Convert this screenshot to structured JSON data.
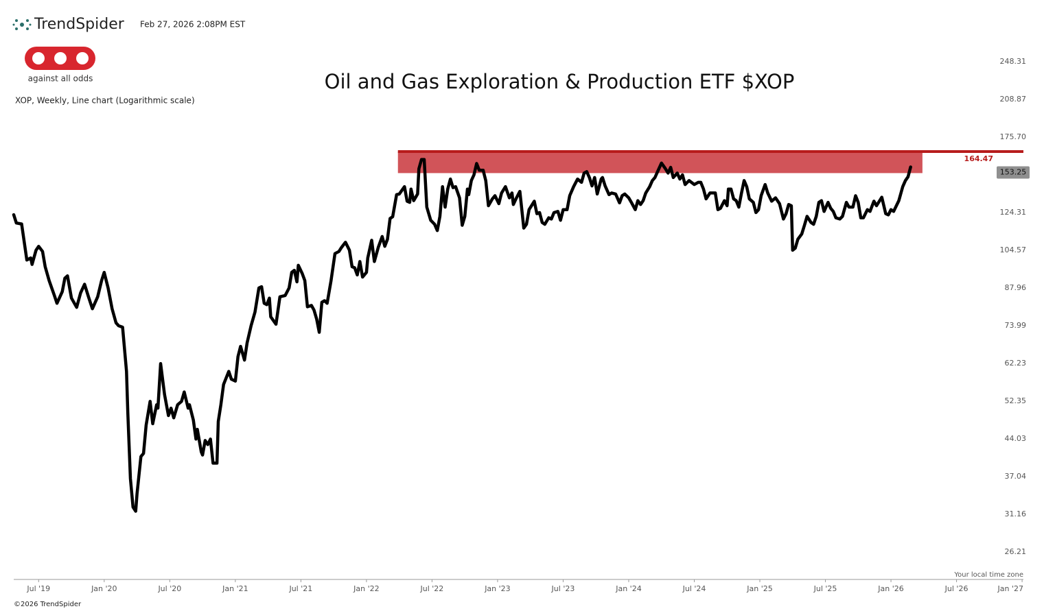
{
  "header": {
    "brand": "TrendSpider",
    "timestamp": "Feb 27, 2026 2:08PM EST",
    "logo_text": "against all odds",
    "timezone_note": "Your local time zone",
    "copyright": "©2026 TrendSpider"
  },
  "chart_data": {
    "type": "line",
    "title": "Oil and Gas Exploration & Production ETF $XOP",
    "subtitle": "XOP, Weekly, Line chart (Logarithmic scale)",
    "log_scale": true,
    "color": "#000000",
    "x": [
      2019.31,
      2019.33,
      2019.37,
      2019.41,
      2019.44,
      2019.45,
      2019.48,
      2019.5,
      2019.53,
      2019.55,
      2019.58,
      2019.62,
      2019.64,
      2019.68,
      2019.7,
      2019.72,
      2019.75,
      2019.79,
      2019.82,
      2019.85,
      2019.88,
      2019.91,
      2019.95,
      2019.98,
      2020.0,
      2020.03,
      2020.06,
      2020.09,
      2020.11,
      2020.14,
      2020.17,
      2020.18,
      2020.2,
      2020.22,
      2020.24,
      2020.25,
      2020.28,
      2020.3,
      2020.32,
      2020.35,
      2020.37,
      2020.4,
      2020.41,
      2020.43,
      2020.46,
      2020.49,
      2020.51,
      2020.53,
      2020.56,
      2020.59,
      2020.61,
      2020.64,
      2020.65,
      2020.68,
      2020.7,
      2020.71,
      2020.74,
      2020.75,
      2020.77,
      2020.79,
      2020.81,
      2020.83,
      2020.86,
      2020.87,
      2020.89,
      2020.91,
      2020.95,
      2020.97,
      2021.0,
      2021.02,
      2021.04,
      2021.07,
      2021.09,
      2021.12,
      2021.15,
      2021.18,
      2021.2,
      2021.22,
      2021.24,
      2021.26,
      2021.27,
      2021.31,
      2021.34,
      2021.38,
      2021.41,
      2021.43,
      2021.45,
      2021.47,
      2021.48,
      2021.51,
      2021.53,
      2021.55,
      2021.58,
      2021.6,
      2021.62,
      2021.64,
      2021.66,
      2021.68,
      2021.7,
      2021.73,
      2021.76,
      2021.79,
      2021.81,
      2021.84,
      2021.87,
      2021.89,
      2021.91,
      2021.93,
      2021.95,
      2021.97,
      2022.0,
      2022.01,
      2022.04,
      2022.06,
      2022.09,
      2022.12,
      2022.14,
      2022.16,
      2022.18,
      2022.2,
      2022.23,
      2022.25,
      2022.29,
      2022.31,
      2022.33,
      2022.34,
      2022.36,
      2022.39,
      2022.4,
      2022.42,
      2022.44,
      2022.46,
      2022.49,
      2022.52,
      2022.54,
      2022.56,
      2022.58,
      2022.6,
      2022.62,
      2022.64,
      2022.66,
      2022.68,
      2022.71,
      2022.73,
      2022.75,
      2022.77,
      2022.78,
      2022.8,
      2022.82,
      2022.84,
      2022.86,
      2022.89,
      2022.91,
      2022.93,
      2022.96,
      2022.98,
      2023.01,
      2023.03,
      2023.06,
      2023.09,
      2023.11,
      2023.12,
      2023.14,
      2023.17,
      2023.2,
      2023.22,
      2023.24,
      2023.28,
      2023.3,
      2023.32,
      2023.34,
      2023.36,
      2023.39,
      2023.41,
      2023.43,
      2023.46,
      2023.48,
      2023.5,
      2023.53,
      2023.55,
      2023.58,
      2023.61,
      2023.64,
      2023.66,
      2023.68,
      2023.7,
      2023.72,
      2023.74,
      2023.76,
      2023.79,
      2023.8,
      2023.82,
      2023.85,
      2023.87,
      2023.9,
      2023.93,
      2023.95,
      2023.97,
      2024.0,
      2024.02,
      2024.05,
      2024.07,
      2024.09,
      2024.11,
      2024.13,
      2024.16,
      2024.18,
      2024.2,
      2024.22,
      2024.25,
      2024.28,
      2024.3,
      2024.32,
      2024.34,
      2024.37,
      2024.39,
      2024.41,
      2024.43,
      2024.46,
      2024.5,
      2024.53,
      2024.55,
      2024.57,
      2024.59,
      2024.62,
      2024.66,
      2024.68,
      2024.7,
      2024.73,
      2024.75,
      2024.76,
      2024.78,
      2024.8,
      2024.82,
      2024.84,
      2024.86,
      2024.88,
      2024.9,
      2024.92,
      2024.95,
      2024.97,
      2024.99,
      2025.01,
      2025.04,
      2025.06,
      2025.09,
      2025.12,
      2025.15,
      2025.18,
      2025.2,
      2025.22,
      2025.24,
      2025.25,
      2025.27,
      2025.29,
      2025.32,
      2025.34,
      2025.36,
      2025.39,
      2025.41,
      2025.43,
      2025.45,
      2025.47,
      2025.49,
      2025.52,
      2025.54,
      2025.56,
      2025.58,
      2025.61,
      2025.63,
      2025.66,
      2025.68,
      2025.71,
      2025.73,
      2025.75,
      2025.77,
      2025.79,
      2025.82,
      2025.84,
      2025.87,
      2025.89,
      2025.93,
      2025.96,
      2025.98,
      2026.0,
      2026.02,
      2026.06,
      2026.09,
      2026.11,
      2026.13,
      2026.15
    ],
    "values": [
      123.1,
      118.5,
      118,
      100,
      101,
      98,
      104.6,
      106.5,
      104,
      97,
      91,
      85,
      82,
      86.5,
      92,
      93,
      84,
      80.5,
      86,
      89.5,
      84.5,
      80,
      84.5,
      91,
      94.5,
      88,
      80,
      75,
      74,
      73.5,
      60,
      49.7,
      36.7,
      32.2,
      31.6,
      34.2,
      40.6,
      41.2,
      46.9,
      52.3,
      47.2,
      51.5,
      50.7,
      62.2,
      54,
      49,
      50.7,
      48.5,
      51.5,
      52.3,
      54.6,
      50.7,
      51.5,
      48,
      44,
      46,
      41.5,
      40.9,
      43.7,
      42.9,
      44,
      39.4,
      39.4,
      47.7,
      51.5,
      56.5,
      60,
      57.9,
      57.4,
      64.2,
      67.3,
      63.2,
      68.4,
      74,
      78.8,
      88,
      88.5,
      82,
      81.5,
      84,
      77.1,
      74.5,
      84.5,
      85,
      88,
      94.5,
      95.4,
      90.5,
      97.6,
      94,
      91,
      80.7,
      81.2,
      79.5,
      76.3,
      71.8,
      82.4,
      83,
      82,
      91,
      103,
      104,
      106,
      108.5,
      104.6,
      97,
      96.5,
      93.4,
      99.3,
      92.5,
      94.5,
      101,
      109.5,
      99.3,
      106,
      111.4,
      106.5,
      110,
      121,
      122,
      135,
      135.4,
      140,
      131,
      130.3,
      138.5,
      131.3,
      135.4,
      152,
      158.6,
      158.6,
      127.5,
      120,
      117.8,
      114.5,
      122.2,
      140,
      127.5,
      138.5,
      145,
      139.4,
      140,
      133,
      117.3,
      122.2,
      138.5,
      135,
      144,
      147.8,
      155.7,
      151,
      151,
      144,
      128.3,
      132.4,
      134.3,
      129.5,
      136,
      140,
      133,
      136,
      129,
      132.4,
      137,
      115.8,
      117.8,
      126,
      131,
      123.7,
      124.3,
      118.8,
      117.8,
      121.4,
      120.7,
      124.3,
      125,
      120,
      126,
      126,
      134.3,
      140,
      145,
      142.8,
      149,
      150,
      146,
      140.5,
      146,
      135.4,
      145,
      146,
      140.5,
      135,
      136,
      135.4,
      130,
      134.3,
      135.4,
      133,
      130.3,
      126,
      131.3,
      129,
      131.3,
      136,
      140,
      144,
      146,
      150,
      156,
      152,
      149,
      153,
      146,
      149,
      145,
      147.8,
      141.4,
      144,
      141.4,
      142.8,
      142.8,
      138.5,
      132.4,
      136,
      136,
      126,
      126.8,
      131.3,
      128.3,
      138.5,
      138.5,
      132.4,
      131.3,
      127.5,
      136,
      144,
      140,
      132.4,
      130.3,
      124.3,
      126,
      134.3,
      141.4,
      136,
      131,
      133,
      129.5,
      120.7,
      123.7,
      129,
      128.3,
      104.6,
      105.6,
      110,
      112.7,
      117.3,
      122.2,
      118.8,
      117.8,
      122.2,
      130.3,
      131.3,
      125,
      130.3,
      126.8,
      125,
      121.4,
      120.7,
      122.2,
      130.3,
      127.5,
      127.5,
      134.3,
      130.3,
      121.4,
      121.4,
      126,
      125,
      131,
      128.3,
      133.4,
      123.7,
      123,
      126,
      125,
      131.3,
      140,
      144,
      146.5,
      153.25
    ],
    "xlim": [
      2019.31,
      2027.01
    ],
    "xticks": [
      {
        "value": 2019.5,
        "label": "Jul '19"
      },
      {
        "value": 2020,
        "label": "Jan '20"
      },
      {
        "value": 2020.5,
        "label": "Jul '20"
      },
      {
        "value": 2021,
        "label": "Jan '21"
      },
      {
        "value": 2021.5,
        "label": "Jul '21"
      },
      {
        "value": 2022,
        "label": "Jan '22"
      },
      {
        "value": 2022.5,
        "label": "Jul '22"
      },
      {
        "value": 2023,
        "label": "Jan '23"
      },
      {
        "value": 2023.5,
        "label": "Jul '23"
      },
      {
        "value": 2024,
        "label": "Jan '24"
      },
      {
        "value": 2024.5,
        "label": "Jul '24"
      },
      {
        "value": 2025,
        "label": "Jan '25"
      },
      {
        "value": 2025.5,
        "label": "Jul '25"
      },
      {
        "value": 2026,
        "label": "Jan '26"
      },
      {
        "value": 2026.5,
        "label": "Jul '26"
      },
      {
        "value": 2027,
        "label": "Jan '27"
      }
    ],
    "ylim": [
      23.11,
      272.9
    ],
    "yticks": [
      248.31,
      208.87,
      {
        "value": 175.7,
        "label": "175.70"
      },
      124.31,
      104.57,
      87.96,
      73.99,
      62.23,
      52.35,
      44.03,
      37.04,
      31.16,
      26.21
    ],
    "resistance": {
      "value": 164.47,
      "color": "#b71c1c"
    },
    "zone": {
      "start": 2022.24,
      "end": 2026.24,
      "lower": 149,
      "color": "#cf4b50"
    }
  }
}
